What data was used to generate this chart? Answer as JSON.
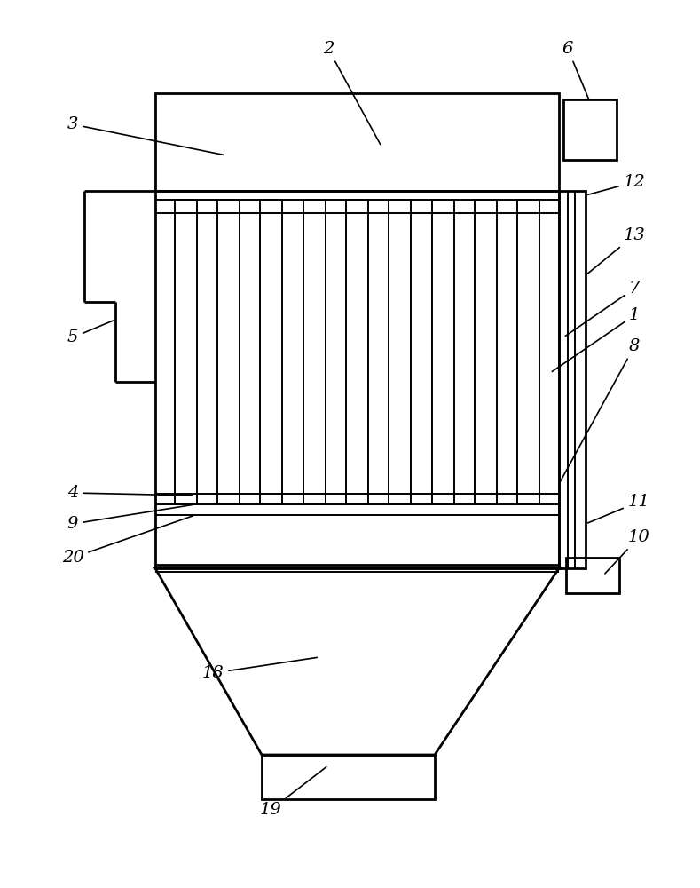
{
  "bg_color": "#ffffff",
  "line_color": "#000000",
  "lw_thick": 2.0,
  "lw_mid": 1.4,
  "lw_thin": 1.0,
  "fig_width": 7.89,
  "fig_height": 10.0
}
